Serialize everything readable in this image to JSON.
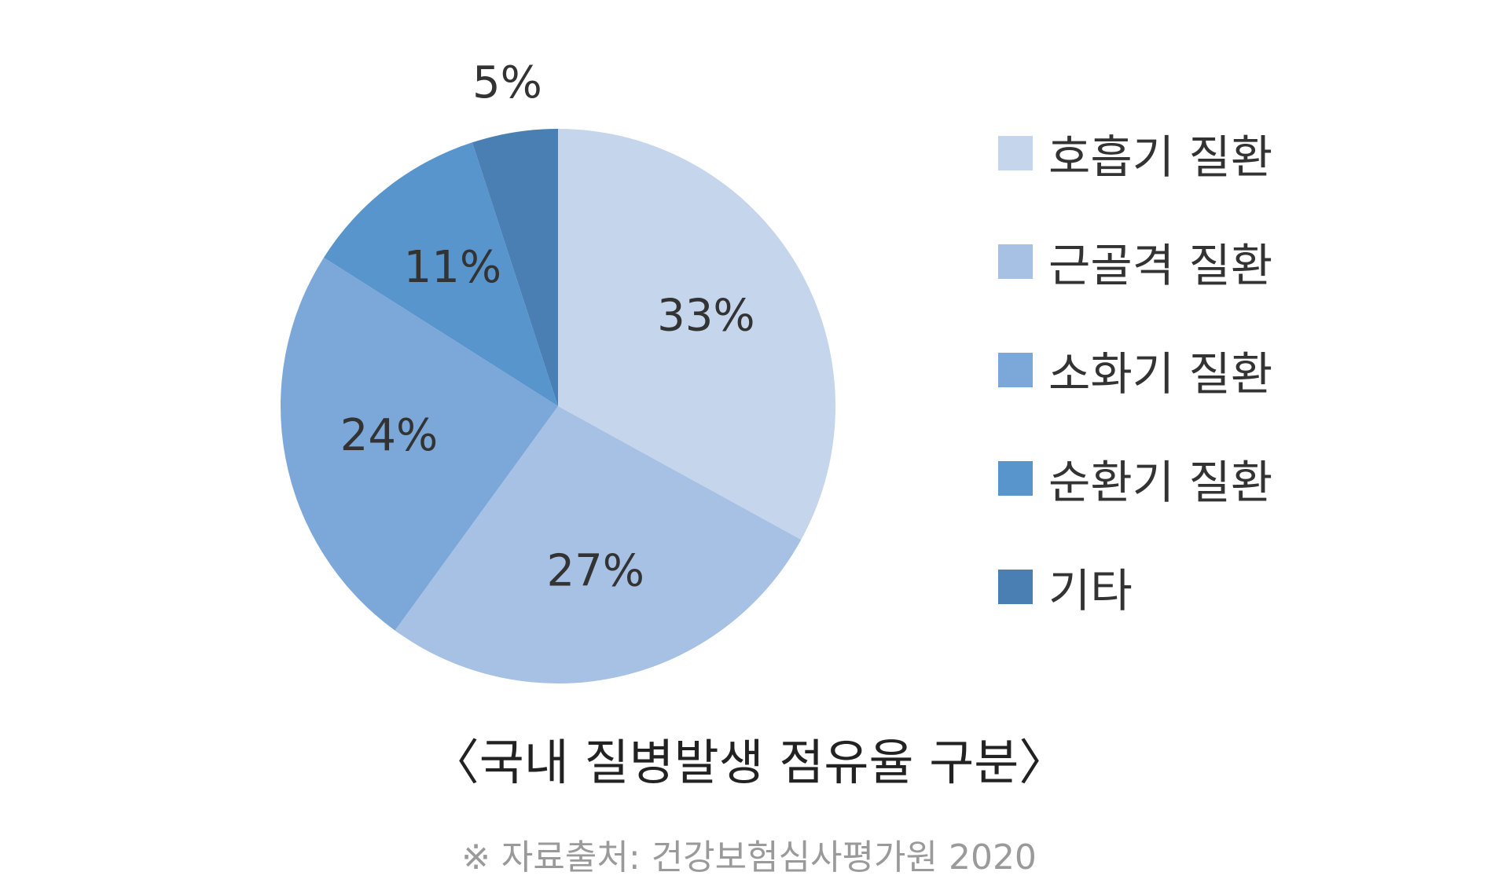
{
  "chart_data": {
    "type": "pie",
    "title": "〈국내 질병발생 점유율 구분〉",
    "source": "※ 자료출처: 건강보험심사평가원 2020",
    "slices": [
      {
        "name": "호흡기 질환",
        "value": 33,
        "label": "33%",
        "color": "#c5d5ec"
      },
      {
        "name": "근골격 질환",
        "value": 27,
        "label": "27%",
        "color": "#a6c1e4"
      },
      {
        "name": "소화기 질환",
        "value": 24,
        "label": "24%",
        "color": "#7ca8d9"
      },
      {
        "name": "순환기 질환",
        "value": 11,
        "label": "11%",
        "color": "#5895cc"
      },
      {
        "name": "기타",
        "value": 5,
        "label": "5%",
        "color": "#4a7fb4"
      }
    ],
    "legend_position": "right"
  }
}
